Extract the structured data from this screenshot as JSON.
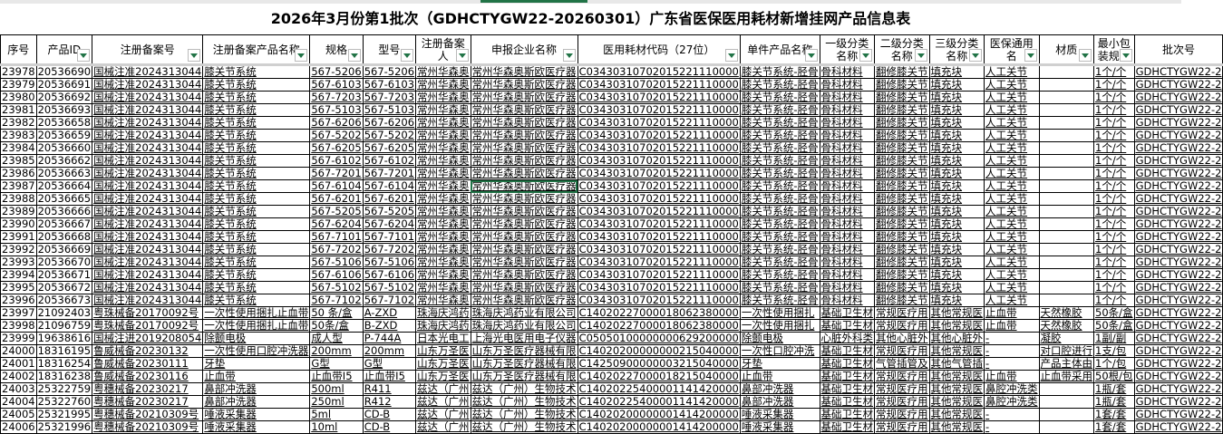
{
  "title": "2026年3月份第1批次（GDHCTYGW22-20260301）广东省医保医用耗材新增挂网产品信息表",
  "accent_color": "#217346",
  "selected_cell": {
    "row_serial": "23987",
    "column": "申报企业名称"
  },
  "columns": [
    "序号",
    "产品ID",
    "注册备案号",
    "注册备案产品名称",
    "规格",
    "型号",
    "注册备案人",
    "申报企业名称",
    "医用耗材代码（27位）",
    "单件产品名称",
    "一级分类名称",
    "二级分类名称",
    "三级分类名称",
    "医保通用名",
    "材质",
    "最小包装规格",
    "批次号"
  ],
  "rows": [
    [
      "23978",
      "20536690",
      "国械注准2024313044",
      "膝关节系统",
      "567-5206",
      "567-5206",
      "常州华森奥",
      "常州华森奥斯欧医疗器",
      "C03430310702015221110000",
      "膝关节系统-胫骨",
      "骨科材料",
      "翻修膝关节",
      "填充块",
      "人工关节",
      "",
      "1个/个",
      "GDHCTYGW22-2"
    ],
    [
      "23979",
      "20536691",
      "国械注准2024313044",
      "膝关节系统",
      "567-6103",
      "567-6103",
      "常州华森奥",
      "常州华森奥斯欧医疗器",
      "C03430310702015221110000",
      "膝关节系统-胫骨",
      "骨科材料",
      "翻修膝关节",
      "填充块",
      "人工关节",
      "",
      "1个/个",
      "GDHCTYGW22-2"
    ],
    [
      "23980",
      "20536692",
      "国械注准2024313044",
      "膝关节系统",
      "567-7203",
      "567-7203",
      "常州华森奥",
      "常州华森奥斯欧医疗器",
      "C03430310702015221110000",
      "膝关节系统-胫骨",
      "骨科材料",
      "翻修膝关节",
      "填充块",
      "人工关节",
      "",
      "1个/个",
      "GDHCTYGW22-2"
    ],
    [
      "23981",
      "20536693",
      "国械注准2024313044",
      "膝关节系统",
      "567-5103",
      "567-5103",
      "常州华森奥",
      "常州华森奥斯欧医疗器",
      "C03430310702015221110000",
      "膝关节系统-胫骨",
      "骨科材料",
      "翻修膝关节",
      "填充块",
      "人工关节",
      "",
      "1个/个",
      "GDHCTYGW22-2"
    ],
    [
      "23982",
      "20536658",
      "国械注准2024313044",
      "膝关节系统",
      "567-6206",
      "567-6206",
      "常州华森奥",
      "常州华森奥斯欧医疗器",
      "C03430310702015221110000",
      "膝关节系统-胫骨",
      "骨科材料",
      "翻修膝关节",
      "填充块",
      "人工关节",
      "",
      "1个/个",
      "GDHCTYGW22-2"
    ],
    [
      "23983",
      "20536659",
      "国械注准2024313044",
      "膝关节系统",
      "567-5202",
      "567-5202",
      "常州华森奥",
      "常州华森奥斯欧医疗器",
      "C03430310702015221110000",
      "膝关节系统-胫骨",
      "骨科材料",
      "翻修膝关节",
      "填充块",
      "人工关节",
      "",
      "1个/个",
      "GDHCTYGW22-2"
    ],
    [
      "23984",
      "20536660",
      "国械注准2024313044",
      "膝关节系统",
      "567-6205",
      "567-6205",
      "常州华森奥",
      "常州华森奥斯欧医疗器",
      "C03430310702015221110000",
      "膝关节系统-胫骨",
      "骨科材料",
      "翻修膝关节",
      "填充块",
      "人工关节",
      "",
      "1个/个",
      "GDHCTYGW22-2"
    ],
    [
      "23985",
      "20536662",
      "国械注准2024313044",
      "膝关节系统",
      "567-6102",
      "567-6102",
      "常州华森奥",
      "常州华森奥斯欧医疗器",
      "C03430310702015221110000",
      "膝关节系统-胫骨",
      "骨科材料",
      "翻修膝关节",
      "填充块",
      "人工关节",
      "",
      "1个/个",
      "GDHCTYGW22-2"
    ],
    [
      "23986",
      "20536663",
      "国械注准2024313044",
      "膝关节系统",
      "567-7201",
      "567-7201",
      "常州华森奥",
      "常州华森奥斯欧医疗器",
      "C03430310702015221110000",
      "膝关节系统-胫骨",
      "骨科材料",
      "翻修膝关节",
      "填充块",
      "人工关节",
      "",
      "1个/个",
      "GDHCTYGW22-2"
    ],
    [
      "23987",
      "20536664",
      "国械注准2024313044",
      "膝关节系统",
      "567-6104",
      "567-6104",
      "常州华森奥",
      "常州华森奥斯欧医疗器",
      "C03430310702015221110000",
      "膝关节系统-胫骨",
      "骨科材料",
      "翻修膝关节",
      "填充块",
      "人工关节",
      "",
      "1个/个",
      "GDHCTYGW22-2"
    ],
    [
      "23988",
      "20536665",
      "国械注准2024313044",
      "膝关节系统",
      "567-6201",
      "567-6201",
      "常州华森奥",
      "常州华森奥斯欧医疗器",
      "C03430310702015221110000",
      "膝关节系统-胫骨",
      "骨科材料",
      "翻修膝关节",
      "填充块",
      "人工关节",
      "",
      "1个/个",
      "GDHCTYGW22-2"
    ],
    [
      "23989",
      "20536666",
      "国械注准2024313044",
      "膝关节系统",
      "567-5205",
      "567-5205",
      "常州华森奥",
      "常州华森奥斯欧医疗器",
      "C03430310702015221110000",
      "膝关节系统-胫骨",
      "骨科材料",
      "翻修膝关节",
      "填充块",
      "人工关节",
      "",
      "1个/个",
      "GDHCTYGW22-2"
    ],
    [
      "23990",
      "20536667",
      "国械注准2024313044",
      "膝关节系统",
      "567-6204",
      "567-6204",
      "常州华森奥",
      "常州华森奥斯欧医疗器",
      "C03430310702015221110000",
      "膝关节系统-胫骨",
      "骨科材料",
      "翻修膝关节",
      "填充块",
      "人工关节",
      "",
      "1个/个",
      "GDHCTYGW22-2"
    ],
    [
      "23991",
      "20536668",
      "国械注准2024313044",
      "膝关节系统",
      "567-7101",
      "567-7101",
      "常州华森奥",
      "常州华森奥斯欧医疗器",
      "C03430310702015221110000",
      "膝关节系统-胫骨",
      "骨科材料",
      "翻修膝关节",
      "填充块",
      "人工关节",
      "",
      "1个/个",
      "GDHCTYGW22-2"
    ],
    [
      "23992",
      "20536669",
      "国械注准2024313044",
      "膝关节系统",
      "567-7202",
      "567-7202",
      "常州华森奥",
      "常州华森奥斯欧医疗器",
      "C03430310702015221110000",
      "膝关节系统-胫骨",
      "骨科材料",
      "翻修膝关节",
      "填充块",
      "人工关节",
      "",
      "1个/个",
      "GDHCTYGW22-2"
    ],
    [
      "23993",
      "20536670",
      "国械注准2024313044",
      "膝关节系统",
      "567-5106",
      "567-5106",
      "常州华森奥",
      "常州华森奥斯欧医疗器",
      "C03430310702015221110000",
      "膝关节系统-胫骨",
      "骨科材料",
      "翻修膝关节",
      "填充块",
      "人工关节",
      "",
      "1个/个",
      "GDHCTYGW22-2"
    ],
    [
      "23994",
      "20536671",
      "国械注准2024313044",
      "膝关节系统",
      "567-6106",
      "567-6106",
      "常州华森奥",
      "常州华森奥斯欧医疗器",
      "C03430310702015221110000",
      "膝关节系统-胫骨",
      "骨科材料",
      "翻修膝关节",
      "填充块",
      "人工关节",
      "",
      "1个/个",
      "GDHCTYGW22-2"
    ],
    [
      "23995",
      "20536672",
      "国械注准2024313044",
      "膝关节系统",
      "567-5102",
      "567-5102",
      "常州华森奥",
      "常州华森奥斯欧医疗器",
      "C03430310702015221110000",
      "膝关节系统-胫骨",
      "骨科材料",
      "翻修膝关节",
      "填充块",
      "人工关节",
      "",
      "1个/个",
      "GDHCTYGW22-2"
    ],
    [
      "23996",
      "20536673",
      "国械注准2024313044",
      "膝关节系统",
      "567-7102",
      "567-7102",
      "常州华森奥",
      "常州华森奥斯欧医疗器",
      "C03430310702015221110000",
      "膝关节系统-胫骨",
      "骨科材料",
      "翻修膝关节",
      "填充块",
      "人工关节",
      "",
      "1个/个",
      "GDHCTYGW22-2"
    ],
    [
      "23997",
      "21092403",
      "粤珠械备20170092号",
      "一次性使用捆扎止血带",
      "50 条/盒",
      "A-ZXD",
      "珠海庆鸿药",
      "珠海庆鸿药业有限公司",
      "C14020227000018062380000",
      "一次性使用捆扎",
      "基础卫生材",
      "常规医疗用",
      "其他常规医",
      "止血带",
      "天然橡胶",
      "50条/盒",
      "GDHCTYGW22-2"
    ],
    [
      "23998",
      "21096759",
      "粤珠械备20170092号",
      "一次性使用捆扎止血带",
      "50条/盒",
      "B-ZXD",
      "珠海庆鸿药",
      "珠海庆鸿药业有限公司",
      "C14020227000018062380000",
      "一次性使用捆扎",
      "基础卫生材",
      "常规医疗用",
      "其他常规医",
      "止血带",
      "天然橡胶",
      "50条/盒",
      "GDHCTYGW22-2"
    ],
    [
      "23999",
      "19638616",
      "国械注进2019208054",
      "除颤电极",
      "成人型",
      "P-744A",
      "日本光电工",
      "上海光电医用电子仪器",
      "C05050100000000629200000",
      "除颤电极",
      "心脏外科类",
      "其他心脏外",
      "其他心脏外",
      "-",
      "凝胶",
      "1副/副",
      "GDHCTYGW22-2"
    ],
    [
      "24000",
      "18316195",
      "鲁威械备20230132",
      "一次性使用口腔冲洗器",
      "200mm",
      "200mm",
      "山东万圣医",
      "山东万圣医疗器械有限",
      "C14020200000000215040000",
      "一次性口腔冲洗",
      "基础卫生材",
      "常规医疗用",
      "其他常规医",
      "-",
      "对口腔进行",
      "1支/包",
      "GDHCTYGW22-2"
    ],
    [
      "24001",
      "18316254",
      "鲁威械备20230111",
      "牙垫",
      "G型",
      "G型",
      "山东万圣医",
      "山东万圣医疗器械有限",
      "C14250900000003215040000",
      "牙垫",
      "基础卫生材",
      "气管插管及",
      "其他气管插",
      "-",
      "产品主体由",
      "1个/包",
      "GDHCTYGW22-2"
    ],
    [
      "24002",
      "18316238",
      "鲁威械备20230116",
      "止血带",
      "止血带Ⅰ5",
      "止血带Ⅰ5",
      "山东万圣医",
      "山东万圣医疗器械有限",
      "C14020227000018215040000",
      "止血带",
      "基础卫生材",
      "常规医疗用",
      "其他常规医",
      "止血带",
      "止血带采用",
      "50根/包",
      "GDHCTYGW22-2"
    ],
    [
      "24003",
      "25322759",
      "粤穗械备20230217",
      "鼻部冲洗器",
      "500ml",
      "R411",
      "兹达（广州",
      "兹达（广州）生物技术",
      "C14020225400001141420000",
      "鼻部冲洗器",
      "基础卫生材",
      "常规医疗用",
      "其他常规医",
      "鼻腔冲洗类",
      "",
      "1瓶/套",
      "GDHCTYGW22-2"
    ],
    [
      "24004",
      "25322760",
      "粤穗械备20230217",
      "鼻部冲洗器",
      "250ml",
      "R412",
      "兹达（广州",
      "兹达（广州）生物技术",
      "C14020225400001141420000",
      "鼻部冲洗器",
      "基础卫生材",
      "常规医疗用",
      "其他常规医",
      "鼻腔冲洗类",
      "",
      "1瓶/套",
      "GDHCTYGW22-2"
    ],
    [
      "24005",
      "25321995",
      "粤穗械备20210309号",
      "唾液采集器",
      "5ml",
      "CD-B",
      "兹达（广州",
      "兹达（广州）生物技术",
      "C14020200000001414200000",
      "唾液采集器",
      "基础卫生材",
      "常规医疗用",
      "其他常规医",
      "-",
      "",
      "1套/套",
      "GDHCTYGW22-2"
    ],
    [
      "24006",
      "25321996",
      "粤穗械备20210309号",
      "唾液采集器",
      "10ml",
      "CD-B",
      "兹达（广州",
      "兹达（广州）生物技术",
      "C14020200000001414200000",
      "唾液采集器",
      "基础卫生材",
      "常规医疗用",
      "其他常规医",
      "-",
      "",
      "1套/套",
      "GDHCTYGW22-2"
    ]
  ]
}
